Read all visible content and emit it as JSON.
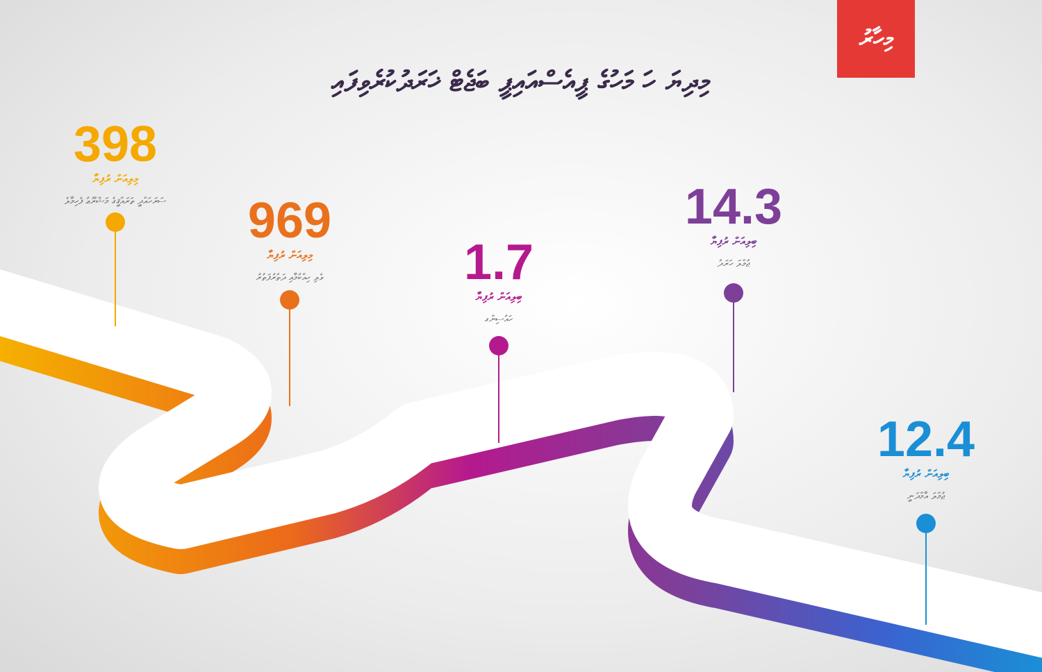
{
  "logo": "މިހާރު",
  "title": "މިދިޔަ ހަ މަހުގެ ޕީއެސްއައިޕީ ބަޖެޓް ޚަރަދުކުރެވިފައި",
  "items": [
    {
      "value": 398,
      "unit": "މިލިއަން ރުފިޔާ",
      "label": "ސަރަހައްދީ ތަރައްޤީގެ މަޝްރޫޢު ފެހިމާލެ",
      "color": "#f5a800"
    },
    {
      "value": 969,
      "unit": "މިލިއަން ރުފިޔާ",
      "label": "ވެލި ހިއްކުމާއި ދަތުރުފަތުރު",
      "color": "#e9711c"
    },
    {
      "value": 1.7,
      "unit": "ބިލިއަން ރުފިޔާ",
      "label": "ހައުސިންގ",
      "color": "#b5198e"
    },
    {
      "value": 14.3,
      "unit": "ބިލިއަން ރުފިޔާ",
      "label": "ޖުމްލަ ހަރަދު",
      "color": "#7e3f98"
    },
    {
      "value": 12.4,
      "unit": "ބިލިއަން ރުފިޔާ",
      "label": "ޖުމްލަ އާމްދަނީ",
      "color": "#1a8fd6"
    }
  ]
}
